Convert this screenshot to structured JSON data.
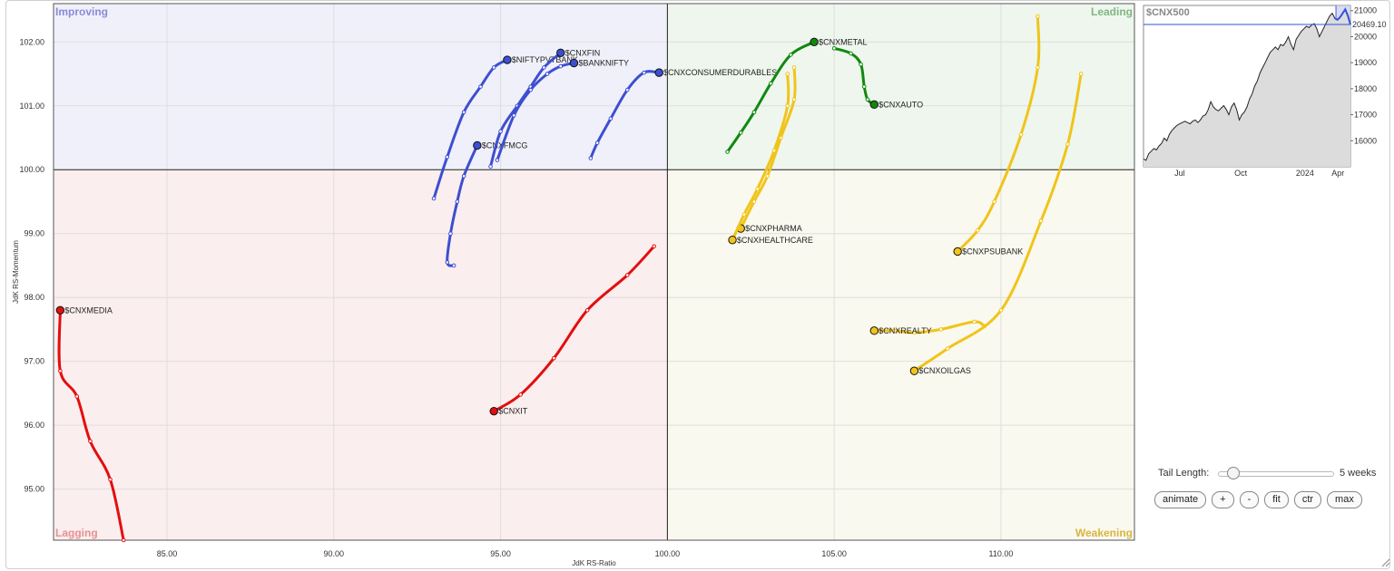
{
  "chart_data": {
    "type": "scatter",
    "xlabel": "JdK RS-Ratio",
    "ylabel": "JdK RS-Momentum",
    "xlim": [
      81.6,
      114.0
    ],
    "ylim": [
      94.2,
      102.6
    ],
    "x_ticks": [
      "85.00",
      "90.00",
      "95.00",
      "100.00",
      "105.00",
      "110.00"
    ],
    "x_tick_values": [
      85,
      90,
      95,
      100,
      105,
      110
    ],
    "y_ticks": [
      "102.00",
      "101.00",
      "100.00",
      "99.00",
      "98.00",
      "97.00",
      "96.00",
      "95.00"
    ],
    "y_tick_values": [
      102,
      101,
      100,
      99,
      98,
      97,
      96,
      95
    ],
    "center": [
      100,
      100
    ],
    "grid": true,
    "quadrants": [
      {
        "name": "Improving",
        "position": "top-left",
        "bg": "#f0f0fa",
        "color": "#8a8ad8"
      },
      {
        "name": "Leading",
        "position": "top-right",
        "bg": "#eef6ee",
        "color": "#7fb87f"
      },
      {
        "name": "Lagging",
        "position": "bottom-left",
        "bg": "#fbeeee",
        "color": "#e89090"
      },
      {
        "name": "Weakening",
        "position": "bottom-right",
        "bg": "#faf9ef",
        "color": "#d9b640"
      }
    ],
    "series": [
      {
        "name": "$CNXFMCG",
        "color": "#3d4fd0",
        "points": [
          [
            93.6,
            98.5
          ],
          [
            93.4,
            98.55
          ],
          [
            93.5,
            99.0
          ],
          [
            93.7,
            99.5
          ],
          [
            93.9,
            99.9
          ],
          [
            94.3,
            100.38
          ]
        ]
      },
      {
        "name": "$NIFTYPVTBANK",
        "color": "#3d4fd0",
        "points": [
          [
            93.0,
            99.55
          ],
          [
            93.4,
            100.2
          ],
          [
            93.9,
            100.9
          ],
          [
            94.4,
            101.3
          ],
          [
            94.8,
            101.6
          ],
          [
            95.2,
            101.72
          ]
        ]
      },
      {
        "name": "$CNXFIN",
        "color": "#3d4fd0",
        "points": [
          [
            94.7,
            100.05
          ],
          [
            95.0,
            100.6
          ],
          [
            95.5,
            101.0
          ],
          [
            95.9,
            101.3
          ],
          [
            96.3,
            101.6
          ],
          [
            96.8,
            101.83
          ]
        ]
      },
      {
        "name": "$BANKNIFTY",
        "color": "#3d4fd0",
        "points": [
          [
            94.9,
            100.15
          ],
          [
            95.4,
            100.85
          ],
          [
            95.9,
            101.25
          ],
          [
            96.4,
            101.5
          ],
          [
            96.8,
            101.62
          ],
          [
            97.2,
            101.67
          ]
        ]
      },
      {
        "name": "$CNXCONSUMERDURABLES",
        "color": "#3d4fd0",
        "points": [
          [
            97.7,
            100.18
          ],
          [
            97.9,
            100.42
          ],
          [
            98.3,
            100.8
          ],
          [
            98.8,
            101.25
          ],
          [
            99.3,
            101.52
          ],
          [
            99.75,
            101.52
          ]
        ]
      },
      {
        "name": "$CNXMETAL",
        "color": "#10880e",
        "points": [
          [
            101.8,
            100.28
          ],
          [
            102.2,
            100.58
          ],
          [
            102.6,
            100.9
          ],
          [
            103.1,
            101.35
          ],
          [
            103.7,
            101.8
          ],
          [
            104.4,
            102.0
          ]
        ]
      },
      {
        "name": "$CNXAUTO",
        "color": "#10880e",
        "points": [
          [
            105.0,
            101.9
          ],
          [
            105.5,
            101.82
          ],
          [
            105.8,
            101.65
          ],
          [
            105.9,
            101.3
          ],
          [
            106.0,
            101.1
          ],
          [
            106.2,
            101.02
          ]
        ]
      },
      {
        "name": "$CNXPHARMA",
        "color": "#f0c419",
        "points": [
          [
            103.8,
            101.6
          ],
          [
            103.8,
            101.1
          ],
          [
            103.4,
            100.5
          ],
          [
            103.0,
            99.9
          ],
          [
            102.6,
            99.5
          ],
          [
            102.2,
            99.08
          ]
        ]
      },
      {
        "name": "$CNXHEALTHCARE",
        "color": "#f0c419",
        "points": [
          [
            103.6,
            101.5
          ],
          [
            103.6,
            101.0
          ],
          [
            103.2,
            100.3
          ],
          [
            102.7,
            99.7
          ],
          [
            102.3,
            99.3
          ],
          [
            101.95,
            98.9
          ]
        ]
      },
      {
        "name": "$CNXPSUBANK",
        "color": "#f0c419",
        "points": [
          [
            111.1,
            102.4
          ],
          [
            111.1,
            101.6
          ],
          [
            110.6,
            100.55
          ],
          [
            109.8,
            99.5
          ],
          [
            109.3,
            99.05
          ],
          [
            108.7,
            98.72
          ]
        ]
      },
      {
        "name": "$CNXREALTY",
        "color": "#f0c419",
        "points": [
          [
            109.5,
            97.55
          ],
          [
            109.2,
            97.62
          ],
          [
            108.2,
            97.5
          ],
          [
            107.4,
            97.45
          ],
          [
            106.8,
            97.48
          ],
          [
            106.2,
            97.48
          ]
        ]
      },
      {
        "name": "$CNXOILGAS",
        "color": "#f0c419",
        "points": [
          [
            112.4,
            101.5
          ],
          [
            112.0,
            100.4
          ],
          [
            111.2,
            99.2
          ],
          [
            110.0,
            97.8
          ],
          [
            108.4,
            97.2
          ],
          [
            107.4,
            96.85
          ]
        ]
      },
      {
        "name": "$CNXIT",
        "color": "#e30e0e",
        "points": [
          [
            99.6,
            98.8
          ],
          [
            98.8,
            98.35
          ],
          [
            97.6,
            97.8
          ],
          [
            96.6,
            97.05
          ],
          [
            95.6,
            96.48
          ],
          [
            94.8,
            96.22
          ]
        ]
      },
      {
        "name": "$CNXMEDIA",
        "color": "#e30e0e",
        "points": [
          [
            83.7,
            94.2
          ],
          [
            83.3,
            95.15
          ],
          [
            82.7,
            95.75
          ],
          [
            82.3,
            96.45
          ],
          [
            81.8,
            96.85
          ],
          [
            81.8,
            97.8
          ]
        ]
      }
    ],
    "mini_chart": {
      "symbol": "$CNXMEDIA",
      "title": "$CNX500",
      "last_value_label": "20469.10",
      "last_value": 20469.1,
      "ylim": [
        15000,
        21200
      ],
      "y_ticks": [
        "21000",
        "20000",
        "19000",
        "18000",
        "17000",
        "16000"
      ],
      "y_tick_values": [
        21000,
        20000,
        19000,
        18000,
        17000,
        16000
      ],
      "x_ticks": [
        "Jul",
        "Oct",
        "2024",
        "Apr"
      ],
      "x_tick_positions": [
        0.175,
        0.47,
        0.78,
        0.94
      ],
      "values": [
        15300,
        15250,
        15500,
        15600,
        15700,
        15650,
        15800,
        15900,
        16100,
        16000,
        16250,
        16400,
        16500,
        16600,
        16650,
        16700,
        16750,
        16700,
        16650,
        16750,
        16800,
        16700,
        16800,
        16950,
        17000,
        17200,
        17500,
        17300,
        17200,
        17150,
        17250,
        17350,
        17200,
        17000,
        17300,
        17450,
        17200,
        16800,
        17000,
        17100,
        17300,
        17600,
        17800,
        18100,
        18300,
        18600,
        18800,
        19000,
        19200,
        19400,
        19500,
        19600,
        19500,
        19700,
        19650,
        19800,
        20000,
        19700,
        19500,
        19900,
        20050,
        20200,
        20300,
        20400,
        20350,
        20450,
        20500,
        20300,
        20000,
        20200,
        20400,
        20600,
        20800,
        20900,
        20700,
        20650,
        20750,
        20900,
        21050,
        20800,
        20469.1
      ],
      "highlight_start": 0.93
    }
  },
  "controls": {
    "tail_length_label": "Tail Length:",
    "tail_length_value": "5 weeks",
    "buttons": [
      "animate",
      "+",
      "-",
      "fit",
      "ctr",
      "max"
    ]
  }
}
